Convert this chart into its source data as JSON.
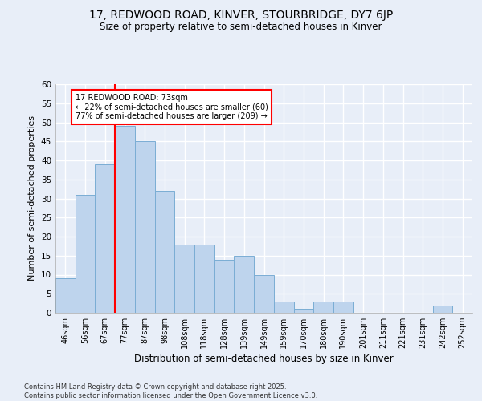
{
  "title": "17, REDWOOD ROAD, KINVER, STOURBRIDGE, DY7 6JP",
  "subtitle": "Size of property relative to semi-detached houses in Kinver",
  "xlabel": "Distribution of semi-detached houses by size in Kinver",
  "ylabel": "Number of semi-detached properties",
  "bar_labels": [
    "46sqm",
    "56sqm",
    "67sqm",
    "77sqm",
    "87sqm",
    "98sqm",
    "108sqm",
    "118sqm",
    "128sqm",
    "139sqm",
    "149sqm",
    "159sqm",
    "170sqm",
    "180sqm",
    "190sqm",
    "201sqm",
    "211sqm",
    "221sqm",
    "231sqm",
    "242sqm",
    "252sqm"
  ],
  "bar_values": [
    9,
    31,
    39,
    49,
    45,
    32,
    18,
    18,
    14,
    15,
    10,
    3,
    1,
    3,
    3,
    0,
    0,
    0,
    0,
    2,
    0
  ],
  "bar_color": "#bed4ed",
  "bar_edge_color": "#7aadd4",
  "vline_x_index": 2,
  "vline_color": "red",
  "annotation_text": "17 REDWOOD ROAD: 73sqm\n← 22% of semi-detached houses are smaller (60)\n77% of semi-detached houses are larger (209) →",
  "annotation_box_color": "white",
  "annotation_box_edge_color": "red",
  "ylim": [
    0,
    60
  ],
  "yticks": [
    0,
    5,
    10,
    15,
    20,
    25,
    30,
    35,
    40,
    45,
    50,
    55,
    60
  ],
  "background_color": "#e8eef8",
  "grid_color": "white",
  "footer": "Contains HM Land Registry data © Crown copyright and database right 2025.\nContains public sector information licensed under the Open Government Licence v3.0."
}
